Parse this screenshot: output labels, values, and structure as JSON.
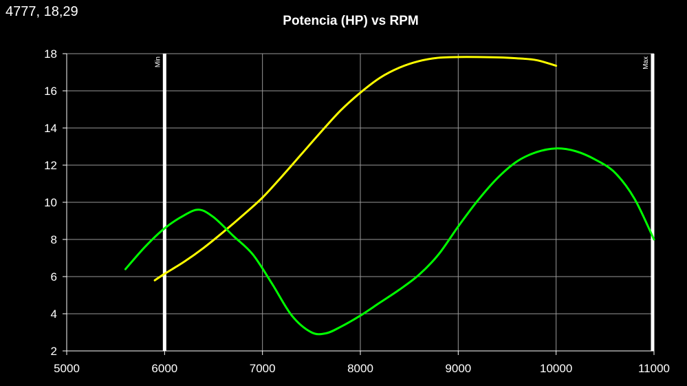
{
  "cursor_readout": "4777, 18,29",
  "chart_data": {
    "type": "line",
    "title": "Potencia (HP) vs RPM",
    "xlabel": "",
    "ylabel": "",
    "xlim": [
      5000,
      11000
    ],
    "ylim": [
      2,
      18
    ],
    "xticks": [
      5000,
      6000,
      7000,
      8000,
      9000,
      10000,
      11000
    ],
    "yticks": [
      2,
      4,
      6,
      8,
      10,
      12,
      14,
      16,
      18
    ],
    "grid": true,
    "markers": [
      {
        "label": "Min",
        "x": 6000,
        "color": "#ffffff"
      },
      {
        "label": "Max",
        "x": 11000,
        "color": "#ffffff"
      }
    ],
    "series": [
      {
        "color": "#ffff00",
        "x": [
          5900,
          6000,
          6200,
          6400,
          6600,
          6800,
          7000,
          7200,
          7400,
          7600,
          7800,
          8000,
          8200,
          8400,
          8600,
          8800,
          9000,
          9200,
          9400,
          9600,
          9800,
          10000
        ],
        "y": [
          5.8,
          6.15,
          6.8,
          7.55,
          8.4,
          9.3,
          10.25,
          11.4,
          12.6,
          13.8,
          14.95,
          15.9,
          16.7,
          17.25,
          17.6,
          17.78,
          17.82,
          17.82,
          17.8,
          17.75,
          17.65,
          17.35
        ]
      },
      {
        "color": "#00ff00",
        "x": [
          5600,
          5800,
          6000,
          6200,
          6350,
          6500,
          6700,
          6900,
          7100,
          7300,
          7500,
          7650,
          7800,
          8000,
          8200,
          8400,
          8600,
          8800,
          9000,
          9200,
          9400,
          9600,
          9800,
          10000,
          10200,
          10400,
          10600,
          10800,
          11000
        ],
        "y": [
          6.4,
          7.6,
          8.6,
          9.3,
          9.6,
          9.2,
          8.2,
          7.2,
          5.6,
          3.9,
          3.0,
          2.95,
          3.3,
          3.9,
          4.6,
          5.3,
          6.1,
          7.2,
          8.7,
          10.1,
          11.3,
          12.2,
          12.7,
          12.9,
          12.75,
          12.3,
          11.6,
          10.2,
          8.0
        ]
      }
    ]
  }
}
